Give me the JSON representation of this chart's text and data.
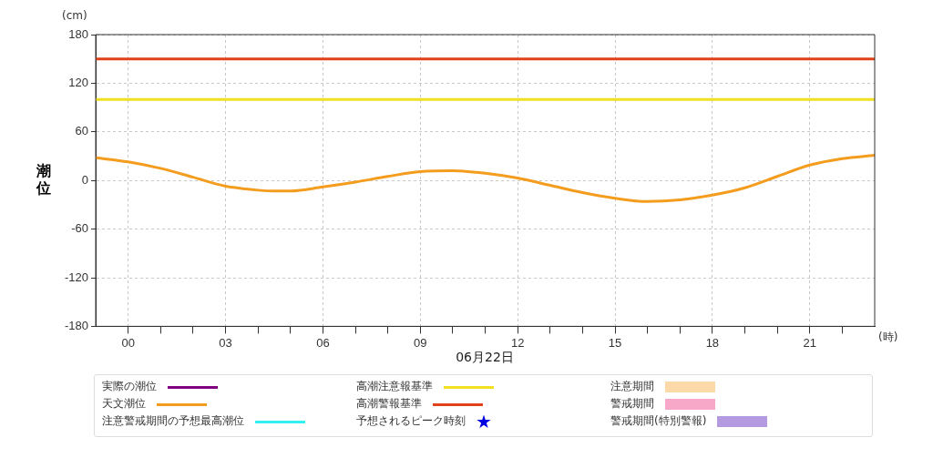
{
  "chart_data": {
    "type": "line",
    "ylabel": "潮位",
    "xlabel": "06月22日",
    "annotations": [
      "(cm)",
      "(時)"
    ],
    "x": [
      -1,
      0,
      1,
      2,
      3,
      4,
      4.5,
      5,
      6,
      7,
      8,
      9,
      10,
      11,
      12,
      13,
      14,
      15,
      16,
      17,
      18,
      19,
      20,
      21,
      22,
      23
    ],
    "series": [
      {
        "name": "実際の潮位",
        "type": "line",
        "color": "#800080",
        "values": [
          null,
          null,
          null,
          null,
          null,
          null,
          null,
          null,
          null,
          null,
          null,
          null,
          null,
          null,
          null,
          null,
          null,
          null,
          null,
          null,
          null,
          null,
          null,
          null,
          null,
          null
        ]
      },
      {
        "name": "天文潮位",
        "type": "line",
        "color": "#f39c1e",
        "values": [
          28,
          23,
          15,
          4,
          -7,
          -12,
          -13,
          -13,
          -8,
          -2,
          5,
          11,
          12,
          9,
          3,
          -6,
          -15,
          -22,
          -26,
          -24,
          -18,
          -9,
          5,
          19,
          27,
          31
        ]
      },
      {
        "name": "注意警戒期間の予想最高潮位",
        "type": "line",
        "color": "#33f0f0",
        "values": [
          null,
          null,
          null,
          null,
          null,
          null,
          null,
          null,
          null,
          null,
          null,
          null,
          null,
          null,
          null,
          null,
          null,
          null,
          null,
          null,
          null,
          null,
          null,
          null,
          null,
          null
        ]
      },
      {
        "name": "予想されるピーク時刻",
        "type": "scatter",
        "marker": "star",
        "color": "#0000e0",
        "values": [
          null,
          null,
          null,
          null,
          null,
          null,
          null,
          null,
          null,
          null,
          null,
          null,
          null,
          null,
          null,
          null,
          null,
          null,
          null,
          null,
          null,
          null,
          null,
          null,
          null,
          null
        ]
      },
      {
        "name": "注意期間",
        "type": "area",
        "color": "#fcd9a8",
        "values": [
          null,
          null,
          null,
          null,
          null,
          null,
          null,
          null,
          null,
          null,
          null,
          null,
          null,
          null,
          null,
          null,
          null,
          null,
          null,
          null,
          null,
          null,
          null,
          null,
          null,
          null
        ]
      },
      {
        "name": "警戒期間",
        "type": "area",
        "color": "#f7a8c8",
        "values": [
          null,
          null,
          null,
          null,
          null,
          null,
          null,
          null,
          null,
          null,
          null,
          null,
          null,
          null,
          null,
          null,
          null,
          null,
          null,
          null,
          null,
          null,
          null,
          null,
          null,
          null
        ]
      },
      {
        "name": "警戒期間(特別警報)",
        "type": "area",
        "color": "#b49ae0",
        "values": [
          null,
          null,
          null,
          null,
          null,
          null,
          null,
          null,
          null,
          null,
          null,
          null,
          null,
          null,
          null,
          null,
          null,
          null,
          null,
          null,
          null,
          null,
          null,
          null,
          null,
          null
        ]
      }
    ],
    "ref_lines": [
      {
        "axis": "y",
        "value": 100,
        "label": "高潮注意報基準",
        "color": "#f0e020"
      },
      {
        "axis": "y",
        "value": 150,
        "label": "高潮警報基準",
        "color": "#e0401a"
      }
    ],
    "xlim": [
      -1,
      23
    ],
    "xticks": [
      {
        "value": 0,
        "label": "00"
      },
      {
        "value": 1,
        "label": null
      },
      {
        "value": 2,
        "label": null
      },
      {
        "value": 3,
        "label": "03"
      },
      {
        "value": 4,
        "label": null
      },
      {
        "value": 5,
        "label": null
      },
      {
        "value": 6,
        "label": "06"
      },
      {
        "value": 7,
        "label": null
      },
      {
        "value": 8,
        "label": null
      },
      {
        "value": 9,
        "label": "09"
      },
      {
        "value": 10,
        "label": null
      },
      {
        "value": 11,
        "label": null
      },
      {
        "value": 12,
        "label": "12"
      },
      {
        "value": 13,
        "label": null
      },
      {
        "value": 14,
        "label": null
      },
      {
        "value": 15,
        "label": "15"
      },
      {
        "value": 16,
        "label": null
      },
      {
        "value": 17,
        "label": null
      },
      {
        "value": 18,
        "label": "18"
      },
      {
        "value": 19,
        "label": null
      },
      {
        "value": 20,
        "label": null
      },
      {
        "value": 21,
        "label": "21"
      },
      {
        "value": 22,
        "label": null
      }
    ],
    "ylim": [
      -180,
      180
    ],
    "yticks": [
      -180,
      -120,
      -60,
      0,
      60,
      120,
      180
    ],
    "grid": true,
    "legend": "bottom"
  }
}
